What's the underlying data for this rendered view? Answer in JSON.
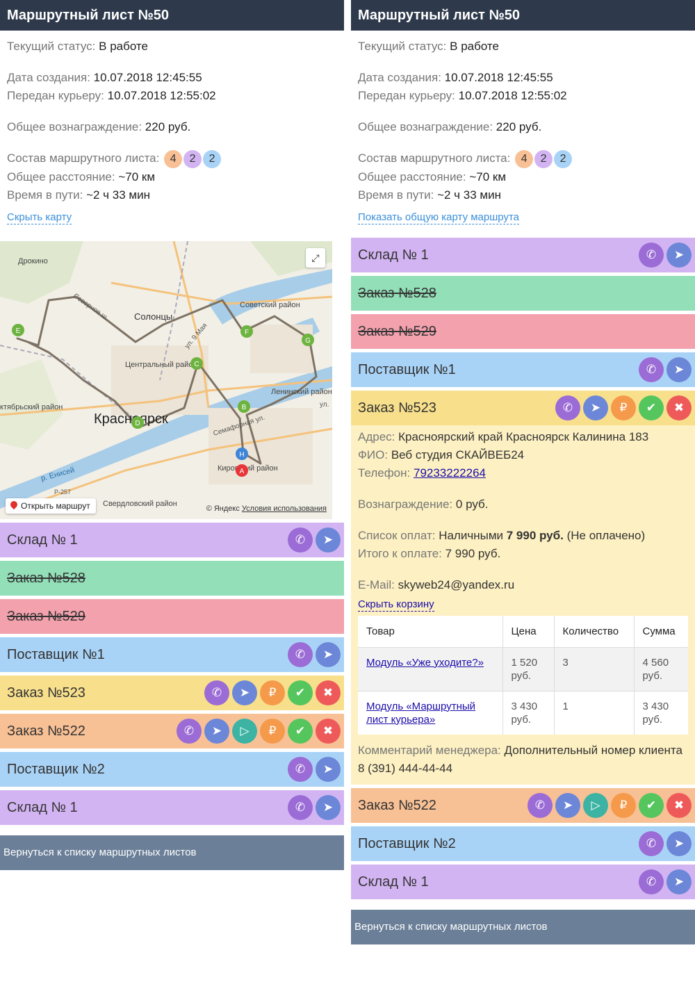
{
  "title": "Маршрутный лист №50",
  "status_label": "Текущий статус:",
  "status_value": "В работе",
  "created_label": "Дата создания:",
  "created_value": "10.07.2018 12:45:55",
  "passed_label": "Передан курьеру:",
  "passed_value": "10.07.2018 12:55:02",
  "reward_label": "Общее вознаграждение:",
  "reward_value": "220 руб.",
  "composition_label": "Состав маршрутного листа:",
  "badges": [
    {
      "value": "4",
      "color": "#f8c095"
    },
    {
      "value": "2",
      "color": "#d3b4f2"
    },
    {
      "value": "2",
      "color": "#a9d3f6"
    }
  ],
  "distance_label": "Общее расстояние:",
  "distance_value": "~70 км",
  "time_label": "Время в пути:",
  "time_value": "~2 ч 33 мин",
  "hide_map_link": "Скрыть карту",
  "show_map_link": "Показать общую карту маршрута",
  "map": {
    "open_route_label": "Открыть маршрут",
    "copyright": "© Яндекс",
    "terms": "Условия использования",
    "place_labels": [
      "Дрокино",
      "Солонцы",
      "Советский район",
      "Центральный район",
      "Ленинский район",
      "ктябрьский район",
      "Красноярск",
      "Семафорная ул.",
      "Кировский район",
      "р. Енисей",
      "Р-257",
      "Свердловский район",
      "ул. 9 Мая",
      "Северное ш.",
      "ул."
    ],
    "markers": [
      "E",
      "F",
      "G",
      "C",
      "B",
      "D",
      "H",
      "A"
    ]
  },
  "stops": [
    {
      "label": "Склад № 1",
      "color": "c-purple",
      "strike": false,
      "actions": [
        "call",
        "nav"
      ]
    },
    {
      "label": "Заказ №528",
      "color": "c-green",
      "strike": true,
      "actions": []
    },
    {
      "label": "Заказ №529",
      "color": "c-red",
      "strike": true,
      "actions": []
    },
    {
      "label": "Поставщик №1",
      "color": "c-blue",
      "strike": false,
      "actions": [
        "call",
        "nav"
      ]
    },
    {
      "label": "Заказ №523",
      "color": "c-yellow",
      "strike": false,
      "actions": [
        "call",
        "nav",
        "pay",
        "ok",
        "x"
      ]
    },
    {
      "label": "Заказ №522",
      "color": "c-orange",
      "strike": false,
      "actions": [
        "call",
        "nav",
        "play",
        "pay",
        "ok",
        "x"
      ]
    },
    {
      "label": "Поставщик №2",
      "color": "c-blue",
      "strike": false,
      "actions": [
        "call",
        "nav"
      ]
    },
    {
      "label": "Склад № 1",
      "color": "c-purple",
      "strike": false,
      "actions": [
        "call",
        "nav"
      ]
    }
  ],
  "order_detail": {
    "address_label": "Адрес:",
    "address_value": "Красноярский край Красноярск Калинина 183",
    "fio_label": "ФИО:",
    "fio_value": "Веб студия СКАЙВЕБ24",
    "phone_label": "Телефон:",
    "phone_value": "79233222264",
    "reward_label": "Вознаграждение:",
    "reward_value": "0 руб.",
    "payments_label": "Список оплат:",
    "payments_method": "Наличными",
    "payments_amount": "7 990 руб.",
    "payments_status": "(Не оплачено)",
    "total_label": "Итого к оплате:",
    "total_value": "7 990 руб.",
    "email_label": "E-Mail:",
    "email_value": "skyweb24@yandex.ru",
    "hide_cart_link": "Скрыть корзину",
    "cart_headers": [
      "Товар",
      "Цена",
      "Количество",
      "Сумма"
    ],
    "cart_rows": [
      {
        "name": "Модуль «Уже уходите?»",
        "price": "1 520 руб.",
        "qty": "3",
        "sum": "4 560 руб."
      },
      {
        "name": "Модуль «Маршрутный лист курьера»",
        "price": "3 430 руб.",
        "qty": "1",
        "sum": "3 430 руб."
      }
    ],
    "comment_label": "Комментарий менеджера:",
    "comment_value": "Дополнительный номер клиента 8 (391) 444-44-44"
  },
  "back_button": "Вернуться к списку маршрутных листов"
}
